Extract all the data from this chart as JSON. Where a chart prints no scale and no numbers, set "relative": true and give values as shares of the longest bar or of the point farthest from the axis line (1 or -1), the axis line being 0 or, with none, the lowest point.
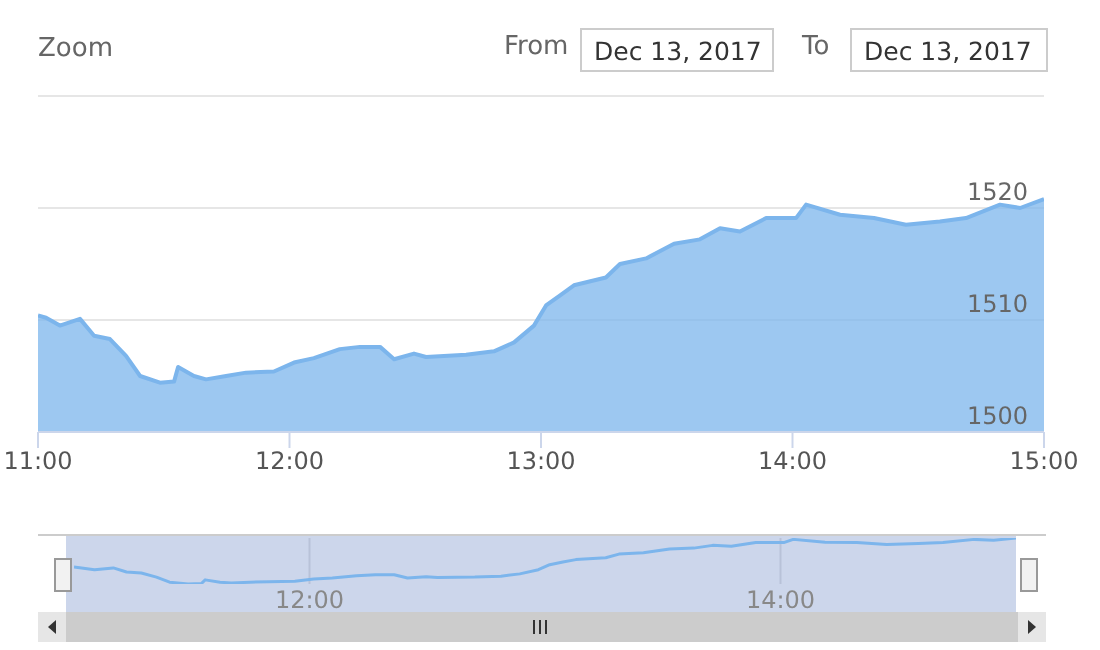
{
  "chart_data": [
    {
      "type": "area",
      "annotations": [
        "Zoom",
        "From",
        "Dec 13, 2017",
        "To",
        "Dec 13, 2017"
      ],
      "x": [
        11.0,
        11.032,
        11.087,
        11.167,
        11.223,
        11.286,
        11.35,
        11.406,
        11.485,
        11.541,
        11.557,
        11.62,
        11.668,
        11.748,
        11.827,
        11.938,
        12.018,
        12.097,
        12.2,
        12.28,
        12.36,
        12.416,
        12.495,
        12.543,
        12.702,
        12.813,
        12.893,
        12.972,
        13.02,
        13.076,
        13.131,
        13.258,
        13.314,
        13.418,
        13.529,
        13.632,
        13.712,
        13.791,
        13.895,
        14.014,
        14.054,
        14.189,
        14.324,
        14.451,
        14.586,
        14.69,
        14.825,
        14.905,
        15.0
      ],
      "series": [
        {
          "color": "#7cb5ec",
          "values": [
            1510.4,
            1510.2,
            1509.5,
            1510.1,
            1508.6,
            1508.3,
            1506.8,
            1505.0,
            1504.4,
            1504.5,
            1505.8,
            1505.0,
            1504.7,
            1505.0,
            1505.3,
            1505.4,
            1506.2,
            1506.6,
            1507.4,
            1507.6,
            1507.6,
            1506.5,
            1507.0,
            1506.7,
            1506.9,
            1507.2,
            1508.0,
            1509.5,
            1511.3,
            1512.2,
            1513.1,
            1513.8,
            1515.0,
            1515.5,
            1516.8,
            1517.2,
            1518.2,
            1517.9,
            1519.1,
            1519.1,
            1520.3,
            1519.4,
            1519.1,
            1518.5,
            1518.8,
            1519.1,
            1520.3,
            1520.0,
            1520.8
          ]
        }
      ],
      "xlim": [
        11,
        15
      ],
      "xticks": [
        {
          "value": 11,
          "label": "11:00"
        },
        {
          "value": 12,
          "label": "12:00"
        },
        {
          "value": 13,
          "label": "13:00"
        },
        {
          "value": 14,
          "label": "14:00"
        },
        {
          "value": 15,
          "label": "15:00"
        }
      ],
      "ylim": [
        1500,
        1530
      ],
      "yticks": [
        1500,
        1510,
        1520,
        {
          "value": 1530,
          "label": null
        }
      ],
      "grid": "y",
      "legend": false
    },
    {
      "type": "line",
      "tick_labels": "x",
      "relative": true,
      "x": [
        11.0,
        11.032,
        11.087,
        11.167,
        11.223,
        11.286,
        11.35,
        11.406,
        11.485,
        11.541,
        11.557,
        11.62,
        11.668,
        11.748,
        11.827,
        11.938,
        12.018,
        12.097,
        12.2,
        12.28,
        12.36,
        12.416,
        12.495,
        12.543,
        12.702,
        12.813,
        12.893,
        12.972,
        13.02,
        13.076,
        13.131,
        13.258,
        13.314,
        13.418,
        13.529,
        13.632,
        13.712,
        13.791,
        13.895,
        14.014,
        14.054,
        14.189,
        14.324,
        14.451,
        14.586,
        14.69,
        14.825,
        14.905,
        15.0
      ],
      "series": [
        {
          "color": "#7cb5ec",
          "values": [
            0.37,
            0.35,
            0.31,
            0.35,
            0.26,
            0.24,
            0.15,
            0.04,
            0,
            0.01,
            0.09,
            0.04,
            0.02,
            0.04,
            0.05,
            0.06,
            0.11,
            0.13,
            0.18,
            0.2,
            0.2,
            0.13,
            0.16,
            0.14,
            0.15,
            0.17,
            0.22,
            0.31,
            0.42,
            0.48,
            0.53,
            0.57,
            0.65,
            0.68,
            0.76,
            0.78,
            0.84,
            0.82,
            0.9,
            0.9,
            0.97,
            0.91,
            0.9,
            0.86,
            0.88,
            0.9,
            0.97,
            0.95,
            1
          ]
        }
      ],
      "xlim": [
        11,
        15
      ],
      "xticks": [
        {
          "value": 12,
          "label": "12:00"
        },
        {
          "value": 14,
          "label": "14:00"
        }
      ],
      "grid": "x",
      "legend": false
    }
  ]
}
